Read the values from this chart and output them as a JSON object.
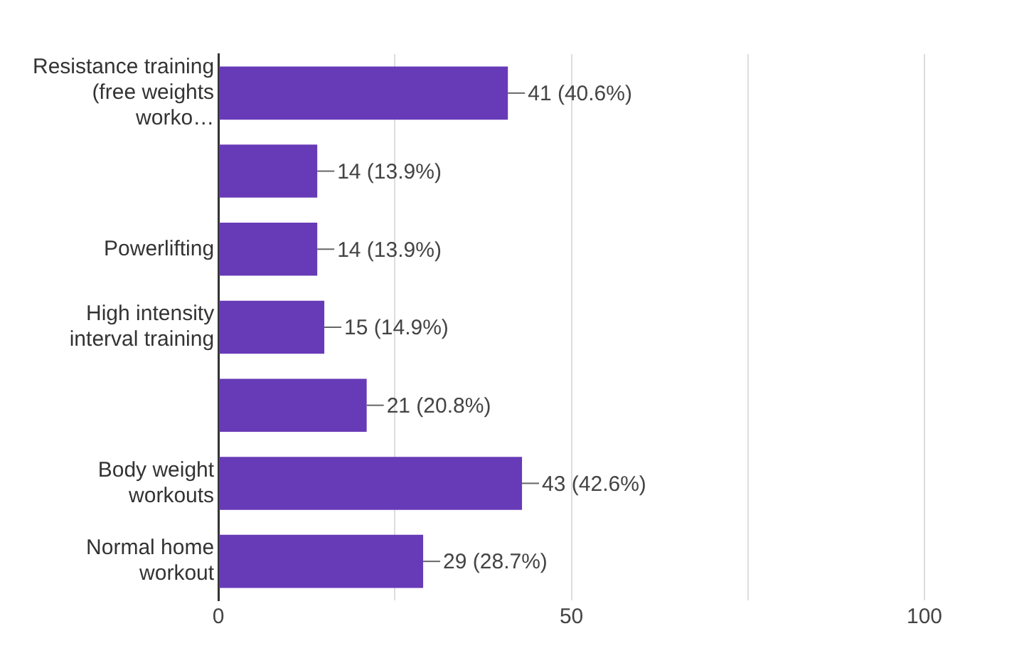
{
  "chart_data": {
    "type": "bar",
    "orientation": "horizontal",
    "categories": [
      "Resistance training (free weights worko…",
      null,
      "Powerlifting",
      "High intensity interval training",
      null,
      "Body weight workouts",
      "Normal home workout"
    ],
    "values": [
      41,
      14,
      14,
      15,
      21,
      43,
      29
    ],
    "value_labels": [
      "41 (40.6%)",
      "14 (13.9%)",
      "14 (13.9%)",
      "15 (14.9%)",
      "21 (20.8%)",
      "43 (42.6%)",
      "29 (28.7%)"
    ],
    "color": "#673ab7",
    "xlim": [
      0,
      100
    ],
    "xticks": [
      0,
      {
        "value": 25,
        "label": null
      },
      50,
      {
        "value": 75,
        "label": null
      },
      100
    ],
    "grid": "x",
    "legend": false
  }
}
